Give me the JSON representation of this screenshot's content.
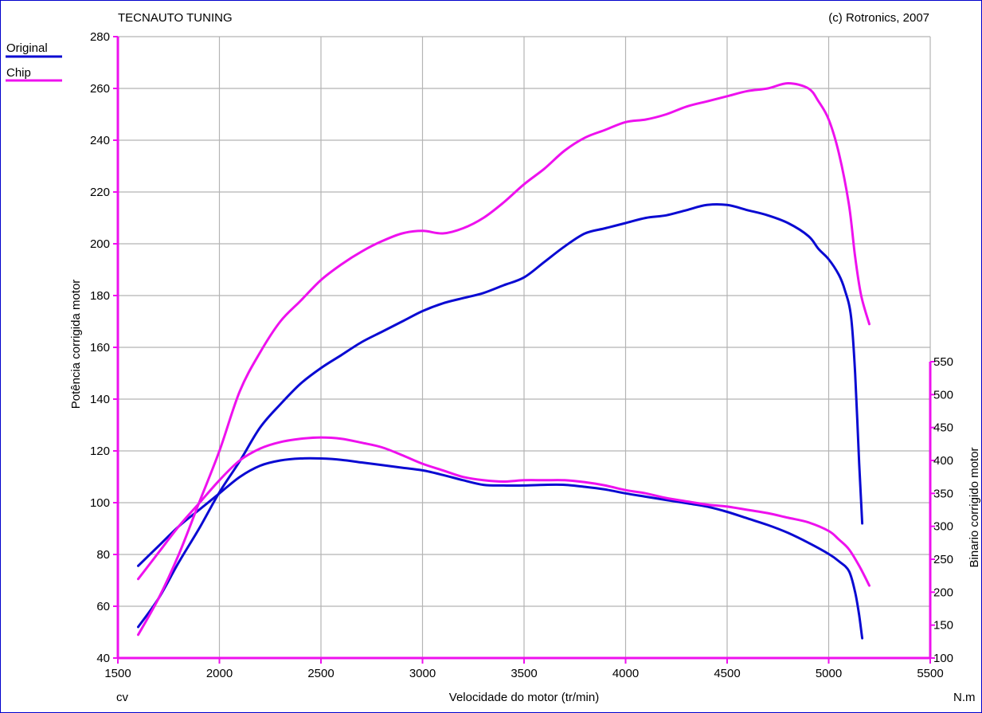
{
  "chart_data": {
    "type": "line",
    "title_left": "TECNAUTO TUNING",
    "title_right": "(c) Rotronics, 2007",
    "xlabel": "Velocidade do motor (tr/min)",
    "ylabel_left": "Potência corrigida  motor",
    "ylabel_right": "Binario corrigido motor",
    "unit_left": "cv",
    "unit_right": "N.m",
    "xlim": [
      1500,
      5500
    ],
    "ylim_left": [
      40,
      280
    ],
    "ylim_right": [
      100,
      550
    ],
    "x_ticks": [
      1500,
      2000,
      2500,
      3000,
      3500,
      4000,
      4500,
      5000,
      5500
    ],
    "y_left_ticks": [
      40,
      60,
      80,
      100,
      120,
      140,
      160,
      180,
      200,
      220,
      240,
      260,
      280
    ],
    "y_right_ticks": [
      100,
      150,
      200,
      250,
      300,
      350,
      400,
      450,
      500,
      550
    ],
    "grid": true,
    "legend": [
      {
        "name": "Original",
        "color": "#0a0ad2"
      },
      {
        "name": "Chip",
        "color": "#ee11ee"
      }
    ],
    "series": [
      {
        "name": "Original",
        "quantity": "power",
        "axis": "left",
        "color": "#0a0ad2",
        "x": [
          1600,
          1700,
          1800,
          1900,
          2000,
          2100,
          2200,
          2300,
          2400,
          2500,
          2600,
          2700,
          2800,
          2900,
          3000,
          3100,
          3200,
          3300,
          3400,
          3500,
          3600,
          3700,
          3800,
          3900,
          4000,
          4100,
          4200,
          4300,
          4400,
          4500,
          4600,
          4700,
          4800,
          4900,
          4950,
          5000,
          5050,
          5080,
          5110,
          5130,
          5150,
          5165
        ],
        "y": [
          52,
          63,
          77,
          90,
          104,
          116,
          129,
          138,
          146,
          152,
          157,
          162,
          166,
          170,
          174,
          177,
          179,
          181,
          184,
          187,
          193,
          199,
          204,
          206,
          208,
          210,
          211,
          213,
          215,
          215,
          213,
          211,
          208,
          203,
          198,
          194,
          188,
          182,
          172,
          150,
          115,
          92
        ]
      },
      {
        "name": "Original",
        "quantity": "torque",
        "axis": "right",
        "color": "#0a0ad2",
        "x": [
          1600,
          1700,
          1800,
          1900,
          2000,
          2100,
          2200,
          2300,
          2400,
          2500,
          2600,
          2700,
          2800,
          2900,
          3000,
          3100,
          3200,
          3300,
          3400,
          3500,
          3600,
          3700,
          3800,
          3900,
          4000,
          4100,
          4200,
          4300,
          4400,
          4500,
          4600,
          4700,
          4800,
          4900,
          5000,
          5050,
          5100,
          5130,
          5150,
          5165
        ],
        "y": [
          240,
          270,
          300,
          325,
          350,
          375,
          392,
          400,
          403,
          403,
          401,
          397,
          393,
          389,
          385,
          378,
          370,
          363,
          362,
          362,
          363,
          363,
          360,
          356,
          350,
          345,
          340,
          335,
          330,
          322,
          312,
          302,
          290,
          275,
          258,
          247,
          232,
          200,
          165,
          130
        ]
      },
      {
        "name": "Chip",
        "quantity": "power",
        "axis": "left",
        "color": "#ee11ee",
        "x": [
          1600,
          1700,
          1800,
          1900,
          2000,
          2100,
          2200,
          2300,
          2400,
          2500,
          2600,
          2700,
          2800,
          2900,
          3000,
          3100,
          3200,
          3300,
          3400,
          3500,
          3600,
          3700,
          3800,
          3900,
          4000,
          4100,
          4200,
          4300,
          4400,
          4500,
          4600,
          4700,
          4800,
          4900,
          4950,
          5000,
          5050,
          5100,
          5130,
          5160,
          5200
        ],
        "y": [
          49,
          63,
          80,
          100,
          120,
          143,
          158,
          170,
          178,
          186,
          192,
          197,
          201,
          204,
          205,
          204,
          206,
          210,
          216,
          223,
          229,
          236,
          241,
          244,
          247,
          248,
          250,
          253,
          255,
          257,
          259,
          260,
          262,
          260,
          255,
          248,
          235,
          215,
          195,
          180,
          169
        ]
      },
      {
        "name": "Chip",
        "quantity": "torque",
        "axis": "right",
        "color": "#ee11ee",
        "x": [
          1600,
          1700,
          1800,
          1900,
          2000,
          2100,
          2200,
          2300,
          2400,
          2500,
          2600,
          2700,
          2800,
          2900,
          3000,
          3100,
          3200,
          3300,
          3400,
          3500,
          3600,
          3700,
          3800,
          3900,
          4000,
          4100,
          4200,
          4300,
          4400,
          4500,
          4600,
          4700,
          4800,
          4900,
          5000,
          5050,
          5100,
          5150,
          5200
        ],
        "y": [
          220,
          260,
          300,
          335,
          370,
          400,
          418,
          428,
          433,
          435,
          433,
          427,
          420,
          408,
          395,
          385,
          375,
          370,
          368,
          370,
          370,
          370,
          367,
          362,
          355,
          350,
          343,
          338,
          333,
          330,
          325,
          320,
          313,
          306,
          293,
          280,
          265,
          240,
          210
        ]
      }
    ]
  }
}
